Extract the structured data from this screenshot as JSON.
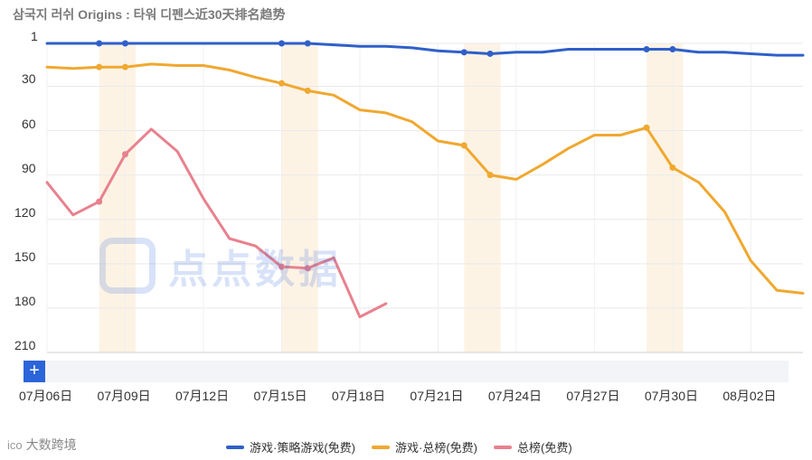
{
  "header": {
    "title": "삼국지 러쉬 Origins : 타워 디펜스近30天排名趋势"
  },
  "chart_data": {
    "type": "line",
    "title": "삼국지 러쉬 Origins : 타워 디펜스近30天排名趋势",
    "y_inverted": true,
    "ylim": [
      1,
      210
    ],
    "y_ticks": [
      "1",
      "30",
      "60",
      "90",
      "120",
      "150",
      "180",
      "210"
    ],
    "x": [
      "07月06日",
      "07月07日",
      "07月08日",
      "07月09日",
      "07月10日",
      "07月11日",
      "07月12日",
      "07月13日",
      "07月14日",
      "07月15日",
      "07月16日",
      "07月17日",
      "07月18日",
      "07月19日",
      "07月20日",
      "07月21日",
      "07月22日",
      "07月23日",
      "07月24日",
      "07月25日",
      "07月26日",
      "07月27日",
      "07月28日",
      "07月29日",
      "07月30日",
      "07月31日",
      "08月01日",
      "08月02日",
      "08月03日",
      "08月04日"
    ],
    "x_tick_labels": [
      "07月06日",
      "07月09日",
      "07月12日",
      "07月15日",
      "07月18日",
      "07月21日",
      "07月24日",
      "07月27日",
      "07月30日",
      "08月02日"
    ],
    "highlight_bands": [
      "07月08日",
      "07月15日",
      "07月22日",
      "07月29日"
    ],
    "grid": true,
    "series": [
      {
        "name": "游戏·策略游戏(免费)",
        "color": "#2f5fc9",
        "values": [
          1,
          1,
          1,
          1,
          1,
          1,
          1,
          1,
          1,
          1,
          1,
          2,
          3,
          3,
          4,
          6,
          7,
          8,
          7,
          7,
          5,
          5,
          5,
          5,
          5,
          7,
          7,
          8,
          9,
          9
        ],
        "markers": [
          2,
          3,
          9,
          10,
          16,
          17,
          23,
          24
        ]
      },
      {
        "name": "游戏·总榜(免费)",
        "color": "#f0a830",
        "values": [
          17,
          18,
          17,
          17,
          15,
          16,
          16,
          19,
          24,
          28,
          33,
          36,
          46,
          48,
          54,
          67,
          70,
          90,
          93,
          83,
          72,
          63,
          63,
          58,
          85,
          95,
          115,
          148,
          168,
          170
        ],
        "markers": [
          2,
          3,
          9,
          10,
          16,
          17,
          23,
          24
        ]
      },
      {
        "name": "总榜(免费)",
        "color": "#e8818e",
        "values": [
          95,
          117,
          108,
          76,
          59,
          74,
          106,
          133,
          138,
          152,
          153,
          146,
          186,
          177,
          null,
          null,
          null,
          null,
          null,
          null,
          null,
          null,
          null,
          null,
          null,
          null,
          null,
          null,
          null,
          null
        ],
        "markers": [
          2,
          3,
          9,
          10
        ]
      }
    ]
  },
  "zoom": {
    "button_label": "+"
  },
  "watermark": {
    "text": "点点数据"
  },
  "branding": {
    "corner_text": "大数跨境",
    "corner_icon": "ico"
  },
  "legend_position": "bottom-center"
}
